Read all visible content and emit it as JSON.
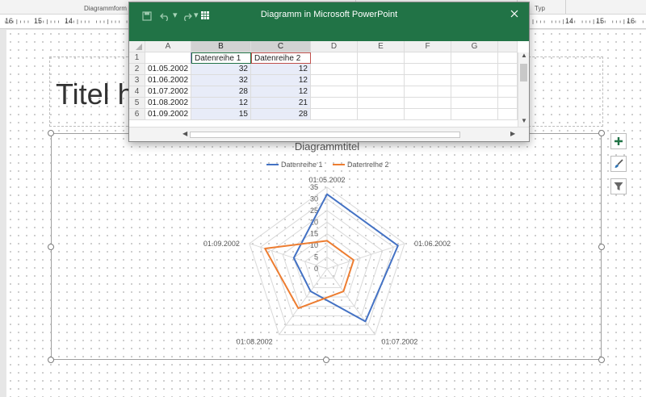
{
  "ribbon": {
    "left_label": "Diagrammform",
    "right_label": "Typ"
  },
  "ruler": {
    "left_ticks": [
      "16",
      "15",
      "14"
    ],
    "right_ticks": [
      "14",
      "15",
      "16"
    ]
  },
  "slide": {
    "title_placeholder": "Titel h"
  },
  "chart": {
    "title": "Diagrammtitel",
    "legend": [
      "Datenreihe 1",
      "Datenreihe 2"
    ],
    "colors": {
      "series1": "#4472C4",
      "series2": "#ED7D31"
    },
    "axis_ticks": [
      "35",
      "30",
      "25",
      "20",
      "15",
      "10",
      "5",
      "0"
    ]
  },
  "chart_data": {
    "type": "radar",
    "title": "Diagrammtitel",
    "categories": [
      "01.05.2002",
      "01.06.2002",
      "01.07.2002",
      "01.08.2002",
      "01.09.2002"
    ],
    "series": [
      {
        "name": "Datenreihe 1",
        "values": [
          32,
          32,
          28,
          12,
          15
        ]
      },
      {
        "name": "Datenreihe 2",
        "values": [
          12,
          12,
          12,
          21,
          28
        ]
      }
    ],
    "rlim": [
      0,
      35
    ],
    "rticks": [
      0,
      5,
      10,
      15,
      20,
      25,
      30,
      35
    ],
    "legend_position": "top"
  },
  "side_buttons": [
    "plus-icon",
    "brush-icon",
    "filter-icon"
  ],
  "excel": {
    "window_title": "Diagramm in Microsoft PowerPoint",
    "columns": [
      "A",
      "B",
      "C",
      "D",
      "E",
      "F",
      "G"
    ],
    "row_numbers": [
      "1",
      "2",
      "3",
      "4",
      "5",
      "6"
    ],
    "rows": [
      [
        "",
        "Datenreihe 1",
        "Datenreihe 2",
        "",
        "",
        "",
        ""
      ],
      [
        "01.05.2002",
        "32",
        "12",
        "",
        "",
        "",
        ""
      ],
      [
        "01.06.2002",
        "32",
        "12",
        "",
        "",
        "",
        ""
      ],
      [
        "01.07.2002",
        "28",
        "12",
        "",
        "",
        "",
        ""
      ],
      [
        "01.08.2002",
        "12",
        "21",
        "",
        "",
        "",
        ""
      ],
      [
        "01.09.2002",
        "15",
        "28",
        "",
        "",
        "",
        ""
      ]
    ]
  }
}
